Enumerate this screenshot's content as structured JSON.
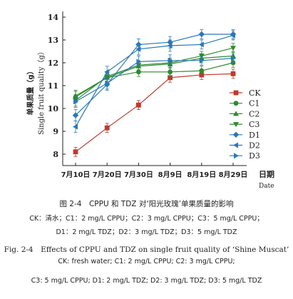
{
  "chart_data": {
    "type": "line",
    "ylabel_cn": "单果质量（g）",
    "ylabel_en": "Single fruit quality（g）",
    "xlabel_cn": "日期",
    "xlabel_en": "Date",
    "categories": [
      "7月10日",
      "7月20日",
      "7月30日",
      "8月9日",
      "8月19日",
      "8月29日"
    ],
    "ylim": [
      7.5,
      14
    ],
    "yticks": [
      8,
      9,
      10,
      11,
      12,
      13,
      14
    ],
    "grid": false,
    "legend_position": "right",
    "series": [
      {
        "name": "CK",
        "color": "#c0392b",
        "marker": "square",
        "values": [
          8.1,
          9.15,
          10.15,
          11.35,
          11.47,
          11.52
        ],
        "errors": [
          0.2,
          0.2,
          0.2,
          0.2,
          0.2,
          0.2
        ]
      },
      {
        "name": "C1",
        "color": "#2e8b2e",
        "marker": "circle",
        "values": [
          10.5,
          11.35,
          11.6,
          11.6,
          11.65,
          12.0
        ],
        "errors": [
          0.25,
          0.2,
          0.2,
          0.2,
          0.2,
          0.2
        ]
      },
      {
        "name": "C2",
        "color": "#2e8b2e",
        "marker": "triangle-up",
        "values": [
          10.55,
          11.35,
          11.85,
          11.95,
          12.2,
          12.3
        ],
        "errors": [
          0.25,
          0.2,
          0.2,
          0.2,
          0.2,
          0.2
        ]
      },
      {
        "name": "C3",
        "color": "#2e8b2e",
        "marker": "triangle-down",
        "values": [
          10.35,
          11.4,
          11.9,
          12.0,
          12.3,
          12.65
        ],
        "errors": [
          0.25,
          0.2,
          0.2,
          0.2,
          0.2,
          0.2
        ]
      },
      {
        "name": "D1",
        "color": "#2b78b8",
        "marker": "diamond",
        "values": [
          9.7,
          11.05,
          12.8,
          12.9,
          13.25,
          13.25
        ],
        "errors": [
          0.25,
          0.25,
          0.25,
          0.25,
          0.2,
          0.2
        ]
      },
      {
        "name": "D2",
        "color": "#2b78b8",
        "marker": "triangle-left",
        "values": [
          9.2,
          11.6,
          12.6,
          12.75,
          12.8,
          13.2
        ],
        "errors": [
          0.25,
          0.25,
          0.25,
          0.25,
          0.2,
          0.2
        ]
      },
      {
        "name": "D3",
        "color": "#2b78b8",
        "marker": "triangle-right",
        "values": [
          10.3,
          11.1,
          12.05,
          12.1,
          12.1,
          12.2
        ],
        "errors": [
          0.25,
          0.25,
          0.25,
          0.25,
          0.2,
          0.2
        ]
      }
    ]
  },
  "captions": {
    "title_cn": "图 2-4　CPPU 和 TDZ 对‘阳光玫瑰’单果质量的影响",
    "legend_cn_1": "CK：清水；C1：2 mg/L CPPU；C2：3 mg/L CPPU；C3：5 mg/L CPPU；",
    "legend_cn_2": "D1：2 mg/L TDZ；D2：3 mg/L TDZ；D3：5 mg/L TDZ",
    "title_en": "Fig. 2-4　Effects of CPPU and TDZ on single fruit quality of ‘Shine Muscat’",
    "legend_en_1": "CK: fresh water; C1: 2 mg/L CPPU; C2: 3 mg/L CPPU;",
    "legend_en_2": "C3: 5 mg/L CPPU; D1: 2 mg/L TDZ; D2: 3 mg/L TDZ; D3: 5 mg/L TDZ"
  }
}
